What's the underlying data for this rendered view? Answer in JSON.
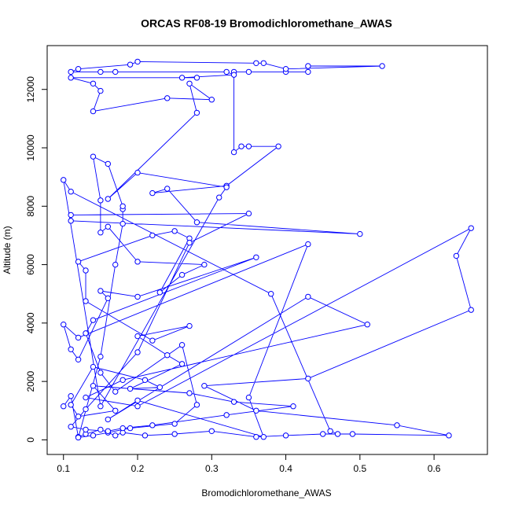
{
  "chart_data": {
    "type": "line",
    "title": "ORCAS RF08-19 Bromodichloromethane_AWAS",
    "x_label": "Bromodichloromethane_AWAS",
    "y_label": "Altitude (m)",
    "color": "#0000ff",
    "marker": "open-circle",
    "grid": false,
    "xlim": [
      0.078,
      0.672
    ],
    "ylim": [
      -500,
      13500
    ],
    "xticks": [
      0.1,
      0.2,
      0.3,
      0.4,
      0.5,
      0.6
    ],
    "yticks": [
      0,
      2000,
      4000,
      6000,
      8000,
      10000,
      12000
    ],
    "x": [
      0.1,
      0.11,
      0.12,
      0.13,
      0.15,
      0.17,
      0.18,
      0.21,
      0.25,
      0.3,
      0.36,
      0.4,
      0.45,
      0.49,
      0.62,
      0.55,
      0.36,
      0.29,
      0.43,
      0.65,
      0.63,
      0.65,
      0.2,
      0.13,
      0.18,
      0.51,
      0.43,
      0.16,
      0.2,
      0.37,
      0.35,
      0.43,
      0.12,
      0.1,
      0.11,
      0.12,
      0.16,
      0.15,
      0.2,
      0.36,
      0.14,
      0.13,
      0.15,
      0.17,
      0.26,
      0.28,
      0.25,
      0.19,
      0.16,
      0.14,
      0.12,
      0.15,
      0.17,
      0.18,
      0.18,
      0.18,
      0.16,
      0.14,
      0.15,
      0.15,
      0.16,
      0.2,
      0.29,
      0.26,
      0.23,
      0.27,
      0.25,
      0.22,
      0.12,
      0.13,
      0.13,
      0.22,
      0.27,
      0.2,
      0.24,
      0.26,
      0.19,
      0.23,
      0.21,
      0.14,
      0.11,
      0.12,
      0.17,
      0.14,
      0.27,
      0.33,
      0.41,
      0.32,
      0.22,
      0.18,
      0.16,
      0.13,
      0.11,
      0.13,
      0.2,
      0.27,
      0.35,
      0.11,
      0.11,
      0.5,
      0.28,
      0.24,
      0.22,
      0.32,
      0.39,
      0.35,
      0.34,
      0.33,
      0.33,
      0.35,
      0.4,
      0.43,
      0.43,
      0.53,
      0.4,
      0.37,
      0.36,
      0.2,
      0.19,
      0.12,
      0.11,
      0.15,
      0.17,
      0.32,
      0.33,
      0.26,
      0.28,
      0.11,
      0.14,
      0.15,
      0.14,
      0.24,
      0.3,
      0.27,
      0.28,
      0.16,
      0.2,
      0.32,
      0.31,
      0.15,
      0.1,
      0.11,
      0.38,
      0.46,
      0.47
    ],
    "values": [
      1150,
      1500,
      100,
      200,
      350,
      150,
      250,
      150,
      200,
      300,
      100,
      150,
      200,
      200,
      150,
      500,
      1000,
      1850,
      2100,
      4450,
      6300,
      7250,
      1150,
      1450,
      2050,
      3950,
      4900,
      700,
      1350,
      100,
      1450,
      6700,
      3500,
      3950,
      3100,
      2750,
      4850,
      5100,
      4900,
      6250,
      4100,
      3650,
      2300,
      1650,
      3250,
      1200,
      550,
      400,
      250,
      150,
      80,
      2850,
      6000,
      7400,
      7900,
      8000,
      9450,
      9700,
      8200,
      7100,
      7300,
      6100,
      6000,
      5650,
      5050,
      6900,
      7150,
      7000,
      6100,
      5800,
      4750,
      3400,
      3900,
      3550,
      2900,
      2600,
      1750,
      1800,
      2050,
      2500,
      1200,
      800,
      1000,
      1850,
      1600,
      1300,
      1150,
      850,
      500,
      400,
      300,
      350,
      450,
      1050,
      3000,
      6750,
      7750,
      7700,
      7500,
      7050,
      7450,
      8600,
      8450,
      8700,
      10050,
      10050,
      10050,
      9850,
      12600,
      12600,
      12600,
      12600,
      12800,
      12800,
      12700,
      12900,
      12900,
      12950,
      12850,
      12700,
      12600,
      12600,
      12600,
      12600,
      12500,
      12400,
      12400,
      12400,
      12200,
      11950,
      11250,
      11700,
      11650,
      12200,
      11200,
      8250,
      9150,
      8650,
      8300,
      1150,
      8900,
      8500,
      5000,
      300,
      200
    ]
  }
}
